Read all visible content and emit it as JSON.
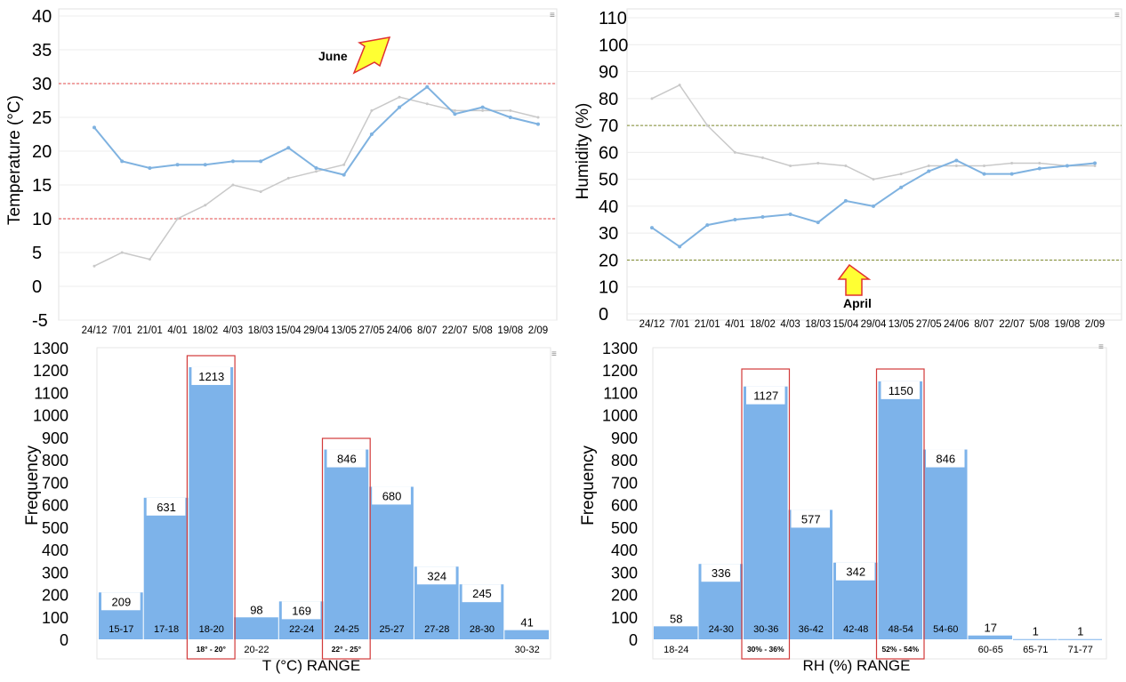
{
  "chart_data": [
    {
      "type": "line",
      "ylabel": "Temperature (°C)",
      "ylim": [
        -5,
        40
      ],
      "yticks": [
        "40",
        "35",
        "30",
        "25",
        "20",
        "15",
        "10",
        "5",
        "0",
        "-5"
      ],
      "x": [
        "24/12",
        "7/01",
        "21/01",
        "4/01",
        "18/02",
        "4/03",
        "18/03",
        "15/04",
        "29/04",
        "13/05",
        "27/05",
        "24/06",
        "8/07",
        "22/07",
        "5/08",
        "19/08",
        "2/09"
      ],
      "series": [
        {
          "values": [
            23.5,
            18.5,
            17.5,
            18,
            18,
            18.5,
            18.5,
            20.5,
            17.5,
            16.5,
            22.5,
            26.5,
            29.5,
            25.5,
            26.5,
            25,
            24
          ]
        },
        {
          "values": [
            3,
            5,
            4,
            10,
            12,
            15,
            14,
            16,
            17,
            18,
            26,
            28,
            27,
            26,
            26,
            26,
            25
          ]
        }
      ],
      "threshold_lines": [
        30,
        10
      ],
      "annotation": "June",
      "grid": true
    },
    {
      "type": "line",
      "ylabel": "Humidity (%)",
      "ylim": [
        0,
        110
      ],
      "yticks": [
        "110",
        "100",
        "90",
        "80",
        "70",
        "60",
        "50",
        "40",
        "30",
        "20",
        "10",
        "0"
      ],
      "x": [
        "24/12",
        "7/01",
        "21/01",
        "4/01",
        "18/02",
        "4/03",
        "18/03",
        "15/04",
        "29/04",
        "13/05",
        "27/05",
        "24/06",
        "8/07",
        "22/07",
        "5/08",
        "19/08",
        "2/09"
      ],
      "series": [
        {
          "values": [
            32,
            25,
            33,
            35,
            36,
            37,
            34,
            42,
            40,
            47,
            53,
            57,
            52,
            52,
            54,
            55,
            56
          ]
        },
        {
          "values": [
            80,
            85,
            70,
            60,
            58,
            55,
            56,
            55,
            50,
            52,
            55,
            55,
            55,
            56,
            56,
            55,
            55
          ]
        }
      ],
      "threshold_lines": [
        70,
        20
      ],
      "annotation": "April",
      "grid": true
    },
    {
      "type": "bar",
      "xlabel": "T (°C) RANGE",
      "ylabel": "Frequency",
      "ylim": [
        0,
        1300
      ],
      "yticks": [
        "1300",
        "1200",
        "1100",
        "1000",
        "900",
        "800",
        "700",
        "600",
        "500",
        "400",
        "300",
        "200",
        "100",
        "0"
      ],
      "categories": [
        "15-17",
        "17-18",
        "18-20",
        "20-22",
        "22-24",
        "24-25",
        "25-27",
        "27-28",
        "28-30",
        "30-32"
      ],
      "values": [
        209,
        631,
        1213,
        98,
        169,
        846,
        680,
        324,
        245,
        41
      ],
      "highlight_labels": [
        "18° - 20°",
        "22° - 25°"
      ]
    },
    {
      "type": "bar",
      "xlabel": "RH (%) RANGE",
      "ylabel": "Frequency",
      "ylim": [
        0,
        1300
      ],
      "yticks": [
        "1300",
        "1200",
        "1100",
        "1000",
        "900",
        "800",
        "700",
        "600",
        "500",
        "400",
        "300",
        "200",
        "100",
        "0"
      ],
      "categories": [
        "18-24",
        "24-30",
        "30-36",
        "36-42",
        "42-48",
        "48-54",
        "54-60",
        "60-65",
        "65-71",
        "71-77"
      ],
      "values": [
        58,
        336,
        1127,
        577,
        342,
        1150,
        846,
        17,
        1,
        1
      ],
      "highlight_labels": [
        "30% - 36%",
        "52% - 54%"
      ]
    }
  ]
}
